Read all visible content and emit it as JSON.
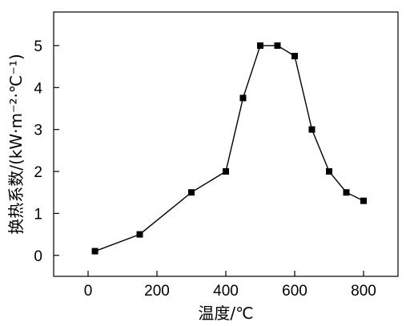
{
  "chart_data": {
    "type": "line",
    "title": "",
    "xlabel": "温度/℃",
    "ylabel": "换热系数/(kW·m⁻²·℃⁻¹)",
    "xlim": [
      -100,
      900
    ],
    "ylim": [
      -0.5,
      5.8
    ],
    "xticks": [
      0,
      200,
      400,
      600,
      800
    ],
    "yticks": [
      0,
      1,
      2,
      3,
      4,
      5
    ],
    "grid": false,
    "legend": "none",
    "marker": "square",
    "color": "#000000",
    "series": [
      {
        "x": [
          20,
          150,
          300,
          400,
          450,
          500,
          550,
          600,
          650,
          700,
          750,
          800
        ],
        "y": [
          0.1,
          0.5,
          1.5,
          2.0,
          3.75,
          5.0,
          5.0,
          4.75,
          3.0,
          2.0,
          1.5,
          1.3
        ]
      }
    ]
  }
}
